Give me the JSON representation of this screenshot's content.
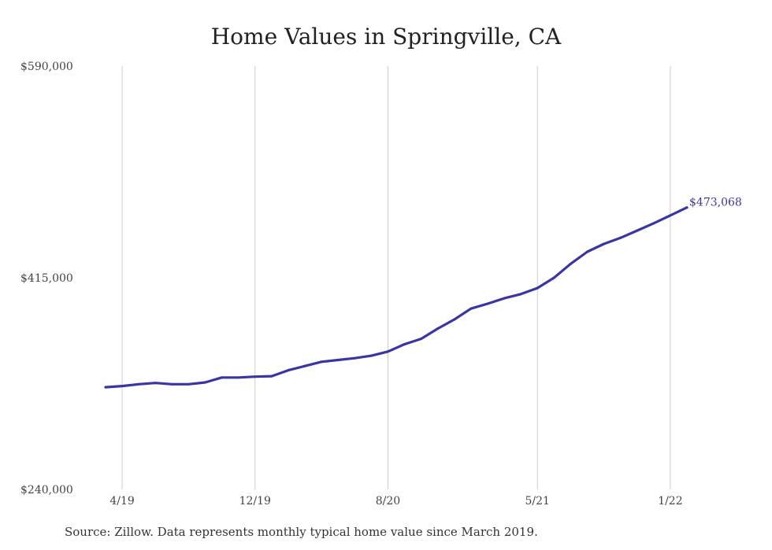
{
  "colors": {
    "line": "#3b35a0",
    "grid": "#cccccc"
  },
  "chart_data": {
    "type": "line",
    "title": "Home Values in Springville, CA",
    "xlabel": "",
    "ylabel": "",
    "ylim": [
      240000,
      590000
    ],
    "yticks": [
      "$590,000",
      "$415,000",
      "$240,000"
    ],
    "ytick_values": [
      590000,
      415000,
      240000
    ],
    "xticks": [
      {
        "label": "4/19",
        "index": 1
      },
      {
        "label": "12/19",
        "index": 9
      },
      {
        "label": "8/20",
        "index": 17
      },
      {
        "label": "5/21",
        "index": 26
      },
      {
        "label": "1/22",
        "index": 34
      }
    ],
    "grid": "vertical",
    "end_label": "$473,068",
    "series": [
      {
        "values": [
          324500,
          325500,
          327000,
          328000,
          327000,
          327000,
          328500,
          332500,
          332500,
          333200,
          333600,
          338500,
          342000,
          345500,
          347000,
          348500,
          350500,
          354000,
          360000,
          364500,
          373000,
          380500,
          389500,
          393500,
          398000,
          401500,
          406500,
          415000,
          426500,
          436500,
          443000,
          448000,
          454000,
          460000,
          466500,
          473068
        ]
      }
    ]
  },
  "source_note": "Source: Zillow. Data represents monthly typical home value since March 2019."
}
